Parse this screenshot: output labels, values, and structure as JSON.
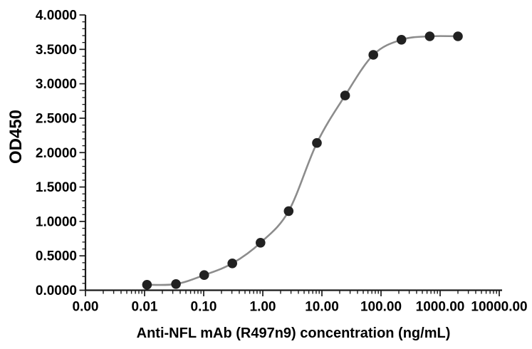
{
  "figure": {
    "background": "#ffffff"
  },
  "chart_data": {
    "type": "line",
    "subtype": "dose-response scatter with smooth connecting curve (ELISA binding curve)",
    "title": "",
    "xlabel": "Anti-NFL mAb (R497n9) concentration (ng/mL)",
    "ylabel": "OD450",
    "x_scale": "log10",
    "x_range": [
      0.001,
      10000
    ],
    "ylim": [
      0,
      4
    ],
    "grid": "off",
    "legend": "none",
    "x_ticks": [
      {
        "value": 0.001,
        "label": "0.00"
      },
      {
        "value": 0.01,
        "label": "0.01"
      },
      {
        "value": 0.1,
        "label": "0.10"
      },
      {
        "value": 1,
        "label": "1.00"
      },
      {
        "value": 10,
        "label": "10.00"
      },
      {
        "value": 100,
        "label": "100.00"
      },
      {
        "value": 1000,
        "label": "1000.00"
      },
      {
        "value": 10000,
        "label": "10000.00"
      }
    ],
    "y_ticks": [
      {
        "value": 0,
        "label": "0.0000"
      },
      {
        "value": 0.5,
        "label": "0.5000"
      },
      {
        "value": 1,
        "label": "1.0000"
      },
      {
        "value": 1.5,
        "label": "1.5000"
      },
      {
        "value": 2,
        "label": "2.0000"
      },
      {
        "value": 2.5,
        "label": "2.5000"
      },
      {
        "value": 3,
        "label": "3.0000"
      },
      {
        "value": 3.5,
        "label": "3.5000"
      },
      {
        "value": 4,
        "label": "4.0000"
      }
    ],
    "y_minor_interval": 0.1,
    "x_minor_ticks": "log decade subdivisions 2-9",
    "series": [
      {
        "name": "Anti-NFL mAb (R497n9)",
        "x": [
          0.011,
          0.034,
          0.102,
          0.305,
          0.914,
          2.74,
          8.23,
          24.7,
          74.1,
          222,
          667,
          2000
        ],
        "y": [
          0.08,
          0.09,
          0.22,
          0.39,
          0.69,
          1.15,
          2.14,
          2.83,
          3.42,
          3.64,
          3.69,
          3.69
        ]
      }
    ],
    "style": {
      "axis_color": "#1a1a1a",
      "line_color": "#8c8c8c",
      "marker_color": "#212121",
      "text_color": "#000000",
      "marker_radius": 6.8
    }
  }
}
